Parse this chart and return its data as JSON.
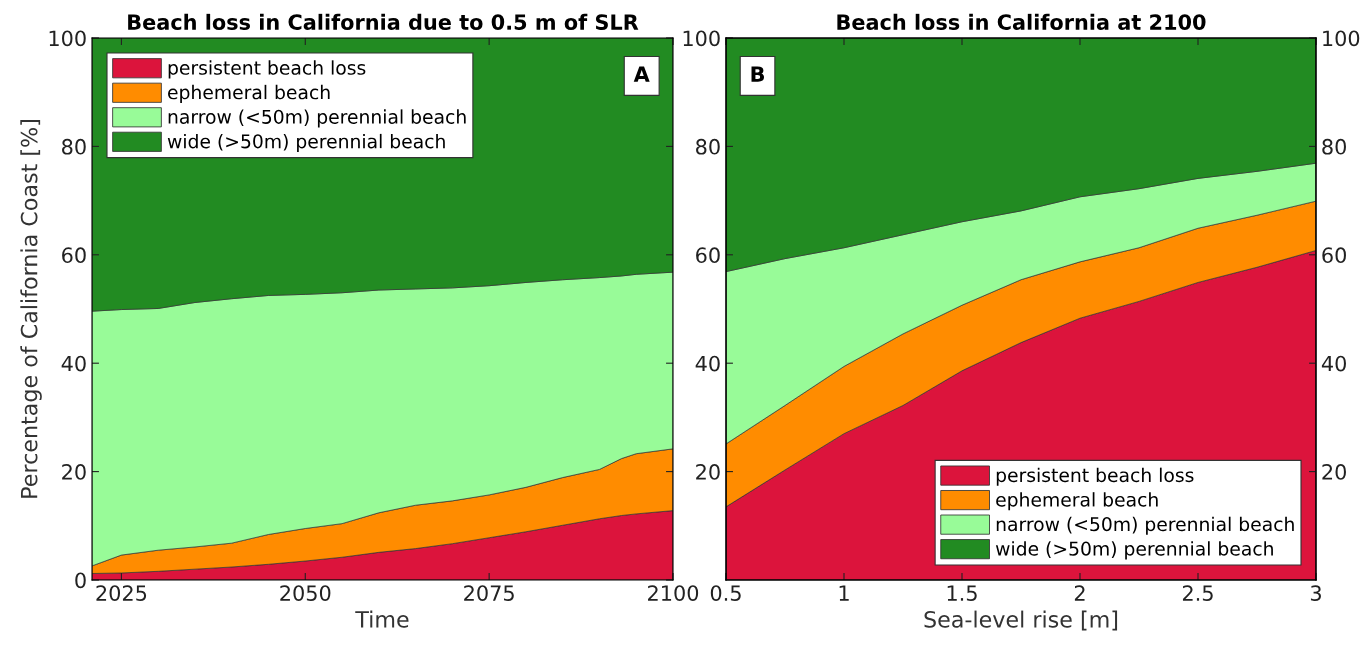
{
  "chart_data": [
    {
      "type": "area",
      "stacked": true,
      "title": "Beach loss in California due to 0.5 m of SLR",
      "xlabel": "Time",
      "ylabel": "Percentage of California Coast [%]",
      "x": [
        2021,
        2025,
        2030,
        2035,
        2040,
        2045,
        2050,
        2055,
        2060,
        2065,
        2070,
        2075,
        2080,
        2085,
        2090,
        2093,
        2095,
        2100
      ],
      "series": [
        {
          "name": "persistent beach loss",
          "color": "#dc143c",
          "values": [
            1.2,
            1.3,
            1.6,
            2.0,
            2.4,
            2.9,
            3.5,
            4.2,
            5.1,
            5.8,
            6.7,
            7.8,
            8.9,
            10.1,
            11.3,
            11.9,
            12.2,
            12.8
          ]
        },
        {
          "name": "ephemeral beach",
          "color": "#ff8c00",
          "values": [
            1.4,
            3.3,
            3.9,
            4.1,
            4.4,
            5.5,
            6.0,
            6.2,
            7.3,
            8.0,
            7.9,
            7.9,
            8.2,
            8.8,
            9.1,
            10.5,
            11.1,
            11.4
          ]
        },
        {
          "name": "narrow (<50m) perennial beach",
          "color": "#98fb98",
          "values": [
            47.0,
            45.3,
            44.6,
            45.1,
            45.1,
            44.1,
            43.2,
            42.6,
            41.1,
            39.9,
            39.3,
            38.6,
            37.8,
            36.5,
            35.4,
            33.7,
            33.1,
            32.6
          ]
        },
        {
          "name": "wide (>50m) perennial beach",
          "color": "#228b22",
          "values": [
            50.4,
            50.1,
            49.9,
            48.8,
            48.1,
            47.5,
            47.3,
            47.0,
            46.5,
            46.3,
            46.1,
            45.7,
            45.1,
            44.6,
            44.2,
            43.9,
            43.6,
            43.2
          ]
        }
      ],
      "xlim": [
        2021,
        2100
      ],
      "xticks": [
        2025,
        2050,
        2075,
        2100
      ],
      "ylim": [
        0,
        100
      ],
      "yticks": [
        0,
        20,
        40,
        60,
        80,
        100
      ],
      "grid": false,
      "legend": "top left",
      "annotations": [
        "A"
      ]
    },
    {
      "type": "area",
      "stacked": true,
      "title": "Beach loss in California at 2100",
      "xlabel": "Sea-level rise [m]",
      "x": [
        0.5,
        0.75,
        1.0,
        1.25,
        1.5,
        1.75,
        2.0,
        2.25,
        2.5,
        2.75,
        3.0
      ],
      "series": [
        {
          "name": "persistent beach loss",
          "color": "#dc143c",
          "values": [
            13.5,
            20.3,
            27.0,
            32.2,
            38.6,
            43.8,
            48.3,
            51.4,
            54.9,
            57.7,
            60.8
          ]
        },
        {
          "name": "ephemeral beach",
          "color": "#ff8c00",
          "values": [
            11.6,
            11.9,
            12.4,
            13.2,
            12.1,
            11.6,
            10.4,
            9.9,
            10.0,
            9.6,
            9.1
          ]
        },
        {
          "name": "narrow (<50m) perennial beach",
          "color": "#98fb98",
          "values": [
            31.8,
            27.1,
            21.9,
            18.3,
            15.4,
            12.7,
            12.0,
            10.9,
            9.2,
            8.1,
            7.0
          ]
        },
        {
          "name": "wide (>50m) perennial beach",
          "color": "#228b22",
          "values": [
            43.1,
            40.7,
            38.7,
            36.3,
            33.9,
            31.9,
            29.3,
            27.8,
            25.9,
            24.6,
            23.1
          ]
        }
      ],
      "xlim": [
        0.5,
        3
      ],
      "xticks": [
        0.5,
        1,
        1.5,
        2,
        2.5,
        3
      ],
      "ylim": [
        0,
        100
      ],
      "yticks": [
        20,
        40,
        60,
        80,
        100
      ],
      "y2lim": [
        0,
        100
      ],
      "y2ticks": [
        20,
        40,
        60,
        80,
        100
      ],
      "grid": false,
      "legend": "bottom right",
      "annotations": [
        "B"
      ]
    }
  ]
}
